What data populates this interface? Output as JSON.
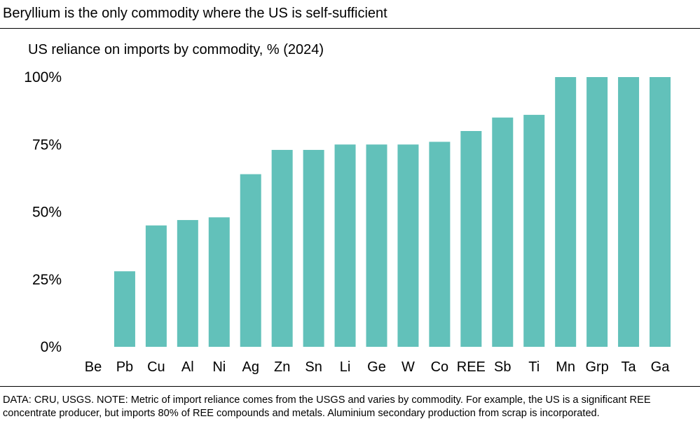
{
  "title": "Beryllium is the only commodity where the US is self-sufficient",
  "note": "DATA: CRU, USGS. NOTE: Metric of import reliance comes from the USGS and varies by commodity. For example, the US is a significant REE concentrate producer, but imports 80% of REE compounds and metals. Aluminium secondary production from scrap is incorporated.",
  "chart_data": {
    "type": "bar",
    "title": "US reliance on imports by commodity, % (2024)",
    "xlabel": "",
    "ylabel": "",
    "categories": [
      "Be",
      "Pb",
      "Cu",
      "Al",
      "Ni",
      "Ag",
      "Zn",
      "Sn",
      "Li",
      "Ge",
      "W",
      "Co",
      "REE",
      "Sb",
      "Ti",
      "Mn",
      "Grp",
      "Ta",
      "Ga"
    ],
    "values": [
      0,
      28,
      45,
      47,
      48,
      64,
      73,
      73,
      75,
      75,
      75,
      76,
      80,
      85,
      86,
      100,
      100,
      100,
      100
    ],
    "ylim": [
      0,
      100
    ],
    "yticks": [
      0,
      25,
      50,
      75,
      100
    ],
    "ytick_labels": [
      "0%",
      "25%",
      "50%",
      "75%",
      "100%"
    ],
    "grid": false,
    "bar_color": "#62c1ba"
  }
}
